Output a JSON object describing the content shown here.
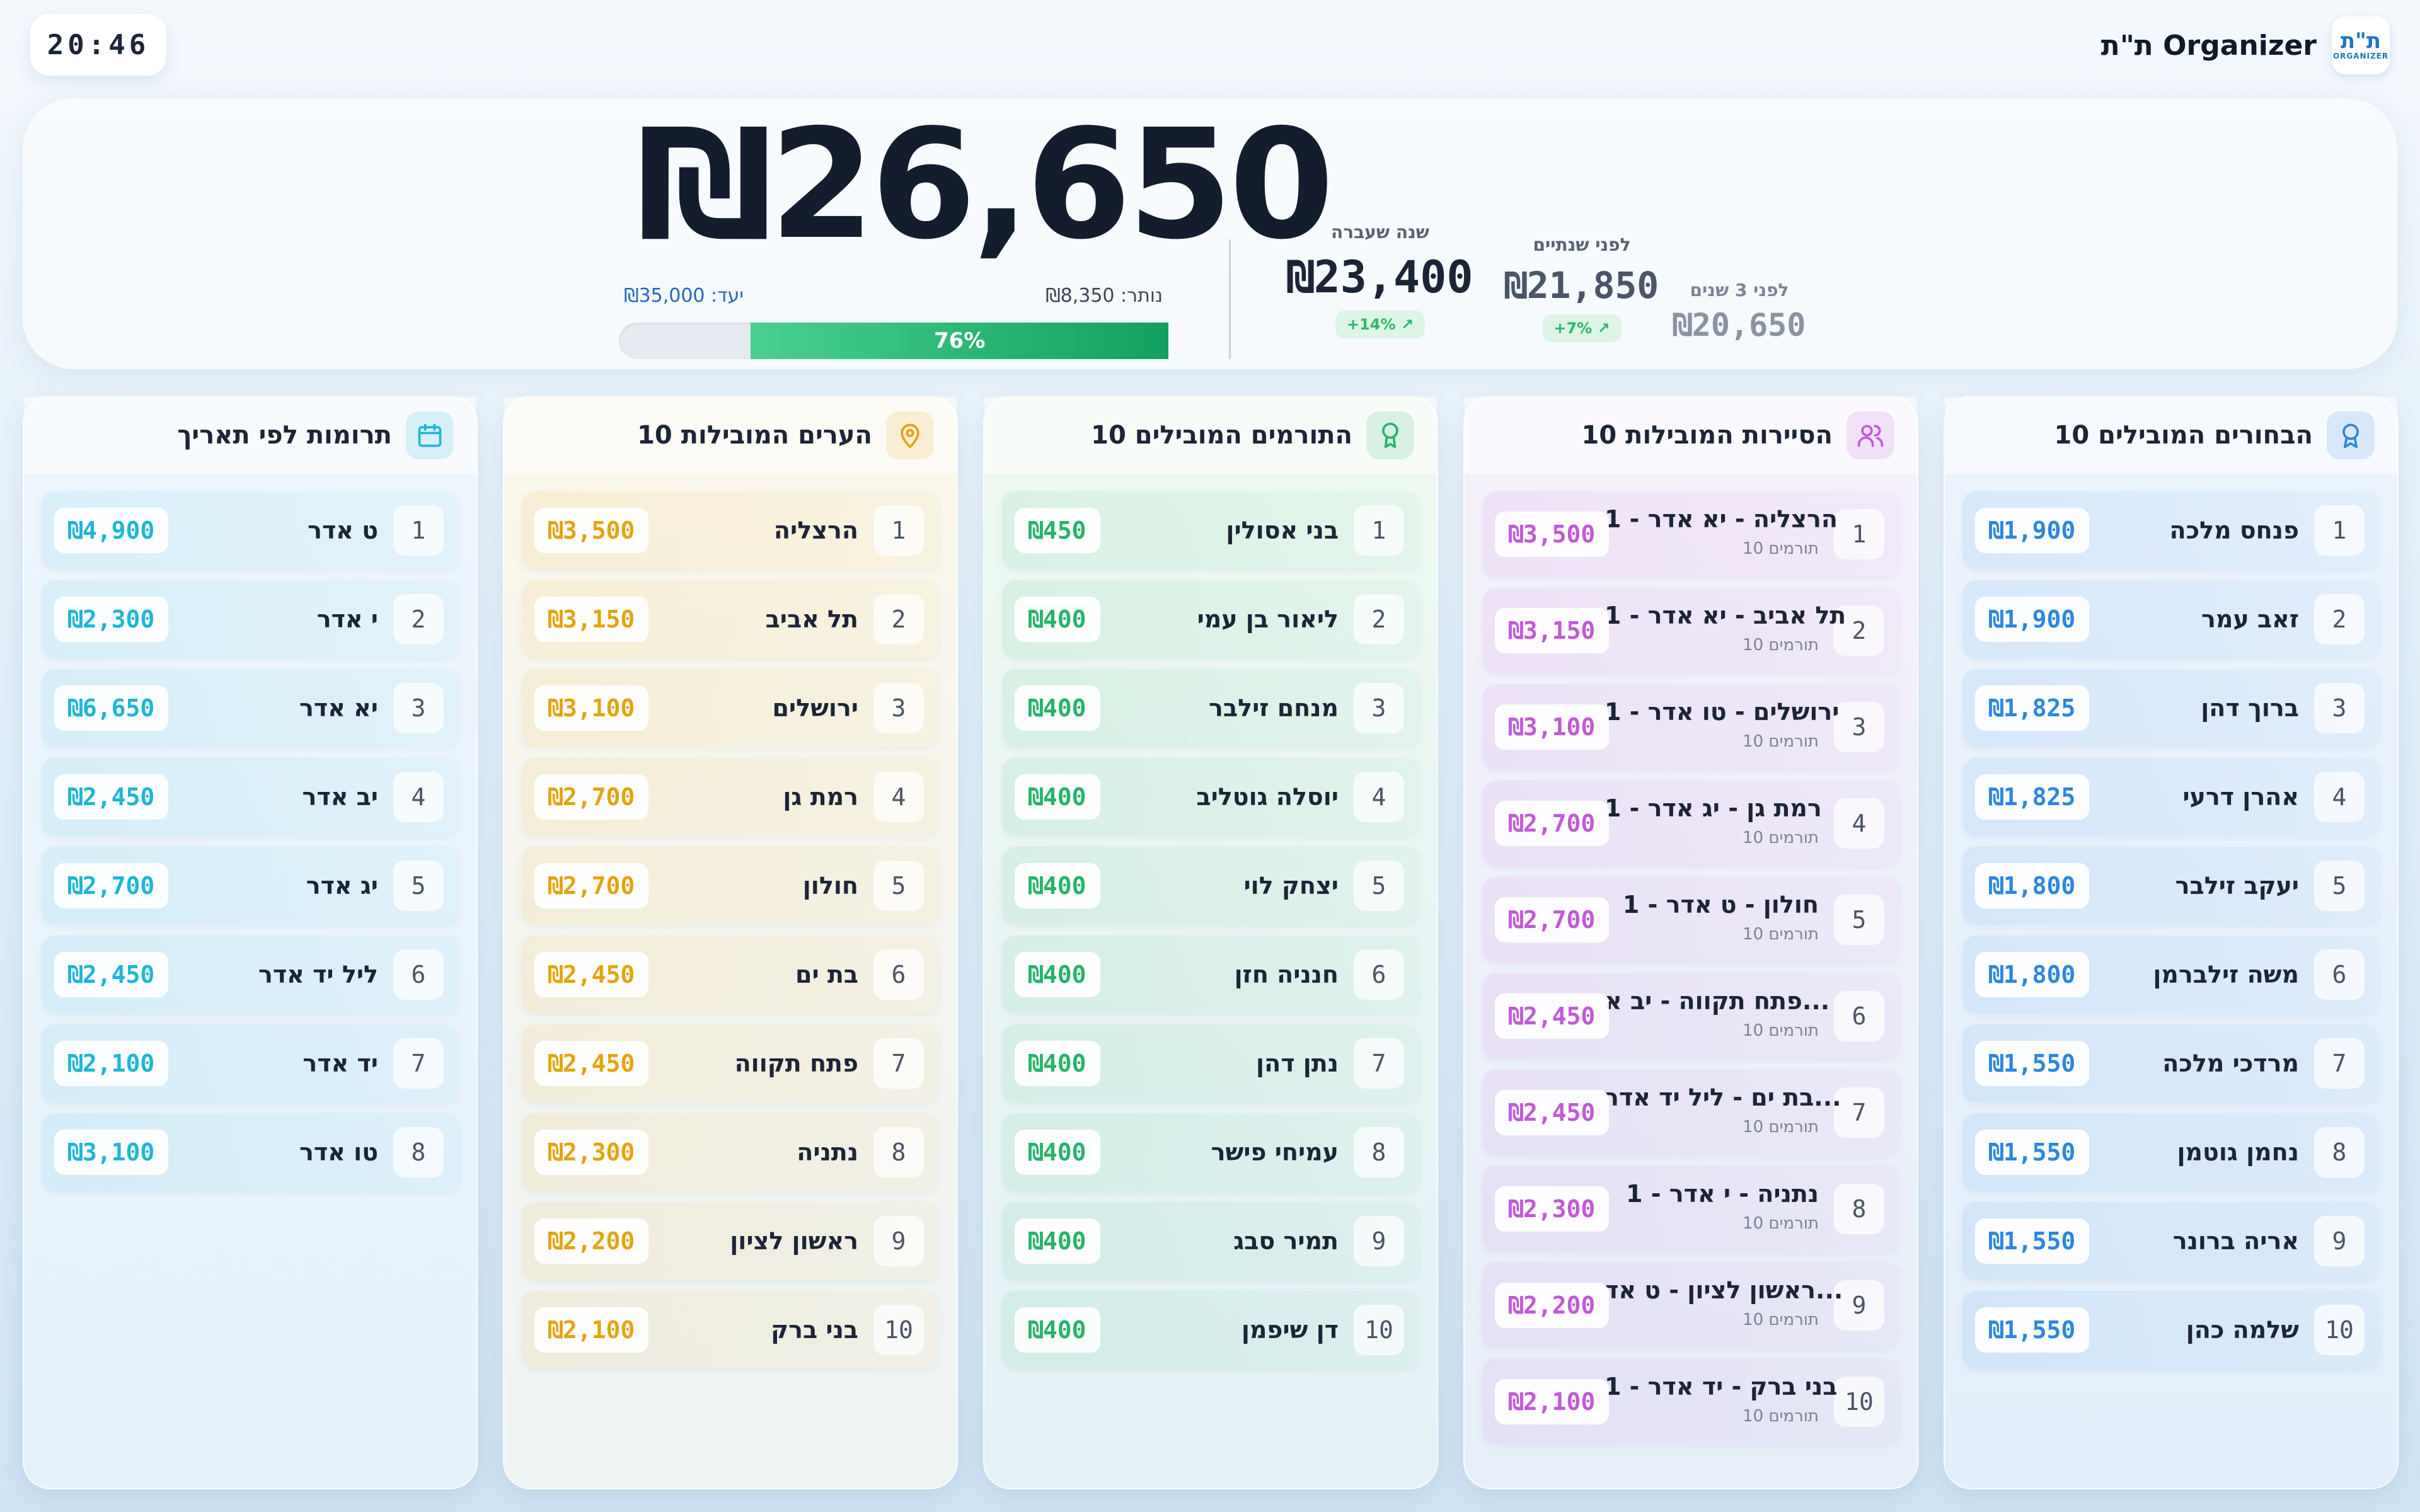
{
  "clock": "20:46",
  "brand": {
    "name": "ת\"ת Organizer",
    "logo_text": "ת\"ת",
    "logo_sub": "ORGANIZER"
  },
  "summary": {
    "total": "₪26,650",
    "goal": "יעד: ₪35,000",
    "remaining": "נותר: ₪8,350",
    "progress_label": "76%",
    "progress_fraction": 0.76,
    "last_year": {
      "label": "שנה שעברה",
      "value": "₪23,400",
      "badge": "+14% ↗"
    },
    "two_years": {
      "label": "לפני שנתיים",
      "value": "₪21,850",
      "badge": "+7% ↗"
    },
    "three_years": {
      "label": "לפני 3 שנים",
      "value": "₪20,650"
    }
  },
  "columns": {
    "students": {
      "title": "10 הבחורים המובילים",
      "icon": "award-icon",
      "color": "#2d86e0",
      "items": [
        {
          "rank": "1",
          "name": "פנחס מלכה",
          "amount": "₪1,900"
        },
        {
          "rank": "2",
          "name": "זאב עמר",
          "amount": "₪1,900"
        },
        {
          "rank": "3",
          "name": "ברוך דהן",
          "amount": "₪1,825"
        },
        {
          "rank": "4",
          "name": "אהרן דרעי",
          "amount": "₪1,825"
        },
        {
          "rank": "5",
          "name": "יעקב זילבר",
          "amount": "₪1,800"
        },
        {
          "rank": "6",
          "name": "משה זילברמן",
          "amount": "₪1,800"
        },
        {
          "rank": "7",
          "name": "מרדכי מלכה",
          "amount": "₪1,550"
        },
        {
          "rank": "8",
          "name": "נחמן גוטמן",
          "amount": "₪1,550"
        },
        {
          "rank": "9",
          "name": "אריה ברונר",
          "amount": "₪1,550"
        },
        {
          "rank": "10",
          "name": "שלמה כהן",
          "amount": "₪1,550"
        }
      ]
    },
    "tours": {
      "title": "10 הסיירות המובילות",
      "icon": "users-icon",
      "color": "#c05ad8",
      "items": [
        {
          "rank": "1",
          "name": "הרצליה - יא אדר - 1",
          "sub": "10 תורמים",
          "amount": "₪3,500"
        },
        {
          "rank": "2",
          "name": "תל אביב - יא אדר - 1",
          "sub": "10 תורמים",
          "amount": "₪3,150"
        },
        {
          "rank": "3",
          "name": "ירושלים - טו אדר - 1",
          "sub": "10 תורמים",
          "amount": "₪3,100"
        },
        {
          "rank": "4",
          "name": "רמת גן - יג אדר - 1",
          "sub": "10 תורמים",
          "amount": "₪2,700"
        },
        {
          "rank": "5",
          "name": "חולון - ט אדר - 1",
          "sub": "10 תורמים",
          "amount": "₪2,700"
        },
        {
          "rank": "6",
          "name": "פתח תקווה - יב א...",
          "sub": "10 תורמים",
          "amount": "₪2,450"
        },
        {
          "rank": "7",
          "name": "בת ים - ליל יד אדר...",
          "sub": "10 תורמים",
          "amount": "₪2,450"
        },
        {
          "rank": "8",
          "name": "נתניה - י אדר - 1",
          "sub": "10 תורמים",
          "amount": "₪2,300"
        },
        {
          "rank": "9",
          "name": "ראשון לציון - ט אד...",
          "sub": "10 תורמים",
          "amount": "₪2,200"
        },
        {
          "rank": "10",
          "name": "בני ברק - יד אדר - 1",
          "sub": "10 תורמים",
          "amount": "₪2,100"
        }
      ]
    },
    "donors": {
      "title": "10 התורמים המובילים",
      "icon": "ribbon-icon",
      "color": "#27b36a",
      "items": [
        {
          "rank": "1",
          "name": "בני אסולין",
          "amount": "₪450"
        },
        {
          "rank": "2",
          "name": "ליאור בן עמי",
          "amount": "₪400"
        },
        {
          "rank": "3",
          "name": "מנחם זילבר",
          "amount": "₪400"
        },
        {
          "rank": "4",
          "name": "יוסלה גוטליב",
          "amount": "₪400"
        },
        {
          "rank": "5",
          "name": "יצחק לוי",
          "amount": "₪400"
        },
        {
          "rank": "6",
          "name": "חנניה חזן",
          "amount": "₪400"
        },
        {
          "rank": "7",
          "name": "נתן דהן",
          "amount": "₪400"
        },
        {
          "rank": "8",
          "name": "עמיחי פישר",
          "amount": "₪400"
        },
        {
          "rank": "9",
          "name": "תמיר סבג",
          "amount": "₪400"
        },
        {
          "rank": "10",
          "name": "דן שיפמן",
          "amount": "₪400"
        }
      ]
    },
    "cities": {
      "title": "10 הערים המובילות",
      "icon": "map-pin-icon",
      "color": "#e3a410",
      "items": [
        {
          "rank": "1",
          "name": "הרצליה",
          "amount": "₪3,500"
        },
        {
          "rank": "2",
          "name": "תל אביב",
          "amount": "₪3,150"
        },
        {
          "rank": "3",
          "name": "ירושלים",
          "amount": "₪3,100"
        },
        {
          "rank": "4",
          "name": "רמת גן",
          "amount": "₪2,700"
        },
        {
          "rank": "5",
          "name": "חולון",
          "amount": "₪2,700"
        },
        {
          "rank": "6",
          "name": "בת ים",
          "amount": "₪2,450"
        },
        {
          "rank": "7",
          "name": "פתח תקווה",
          "amount": "₪2,450"
        },
        {
          "rank": "8",
          "name": "נתניה",
          "amount": "₪2,300"
        },
        {
          "rank": "9",
          "name": "ראשון לציון",
          "amount": "₪2,200"
        },
        {
          "rank": "10",
          "name": "בני ברק",
          "amount": "₪2,100"
        }
      ]
    },
    "dates": {
      "title": "תרומות לפי תאריך",
      "icon": "calendar-icon",
      "color": "#1fb5d6",
      "items": [
        {
          "rank": "1",
          "name": "ט אדר",
          "amount": "₪4,900"
        },
        {
          "rank": "2",
          "name": "י אדר",
          "amount": "₪2,300"
        },
        {
          "rank": "3",
          "name": "יא אדר",
          "amount": "₪6,650"
        },
        {
          "rank": "4",
          "name": "יב אדר",
          "amount": "₪2,450"
        },
        {
          "rank": "5",
          "name": "יג אדר",
          "amount": "₪2,700"
        },
        {
          "rank": "6",
          "name": "ליל יד אדר",
          "amount": "₪2,450"
        },
        {
          "rank": "7",
          "name": "יד אדר",
          "amount": "₪2,100"
        },
        {
          "rank": "8",
          "name": "טו אדר",
          "amount": "₪3,100"
        }
      ]
    }
  }
}
